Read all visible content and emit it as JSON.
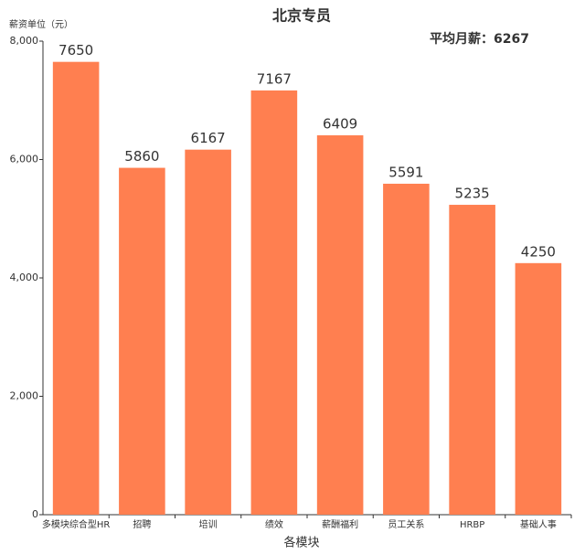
{
  "chart_data": {
    "type": "bar",
    "title": "北京专员",
    "y_label": "薪资单位（元）",
    "x_label": "各模块",
    "annotation": "平均月薪：6267",
    "categories": [
      "多模块综合型HR",
      "招聘",
      "培训",
      "绩效",
      "薪酬福利",
      "员工关系",
      "HRBP",
      "基础人事"
    ],
    "values": [
      7650,
      5860,
      6167,
      7167,
      6409,
      5591,
      5235,
      4250
    ],
    "color": "#ff7f50",
    "ylim": [
      0,
      8000
    ],
    "yticks": [
      0,
      {
        "value": 2000,
        "label": "2,000"
      },
      {
        "value": 4000,
        "label": "4,000"
      },
      {
        "value": 6000,
        "label": "6,000"
      },
      {
        "value": 8000,
        "label": "8,000"
      }
    ],
    "grid": false
  }
}
